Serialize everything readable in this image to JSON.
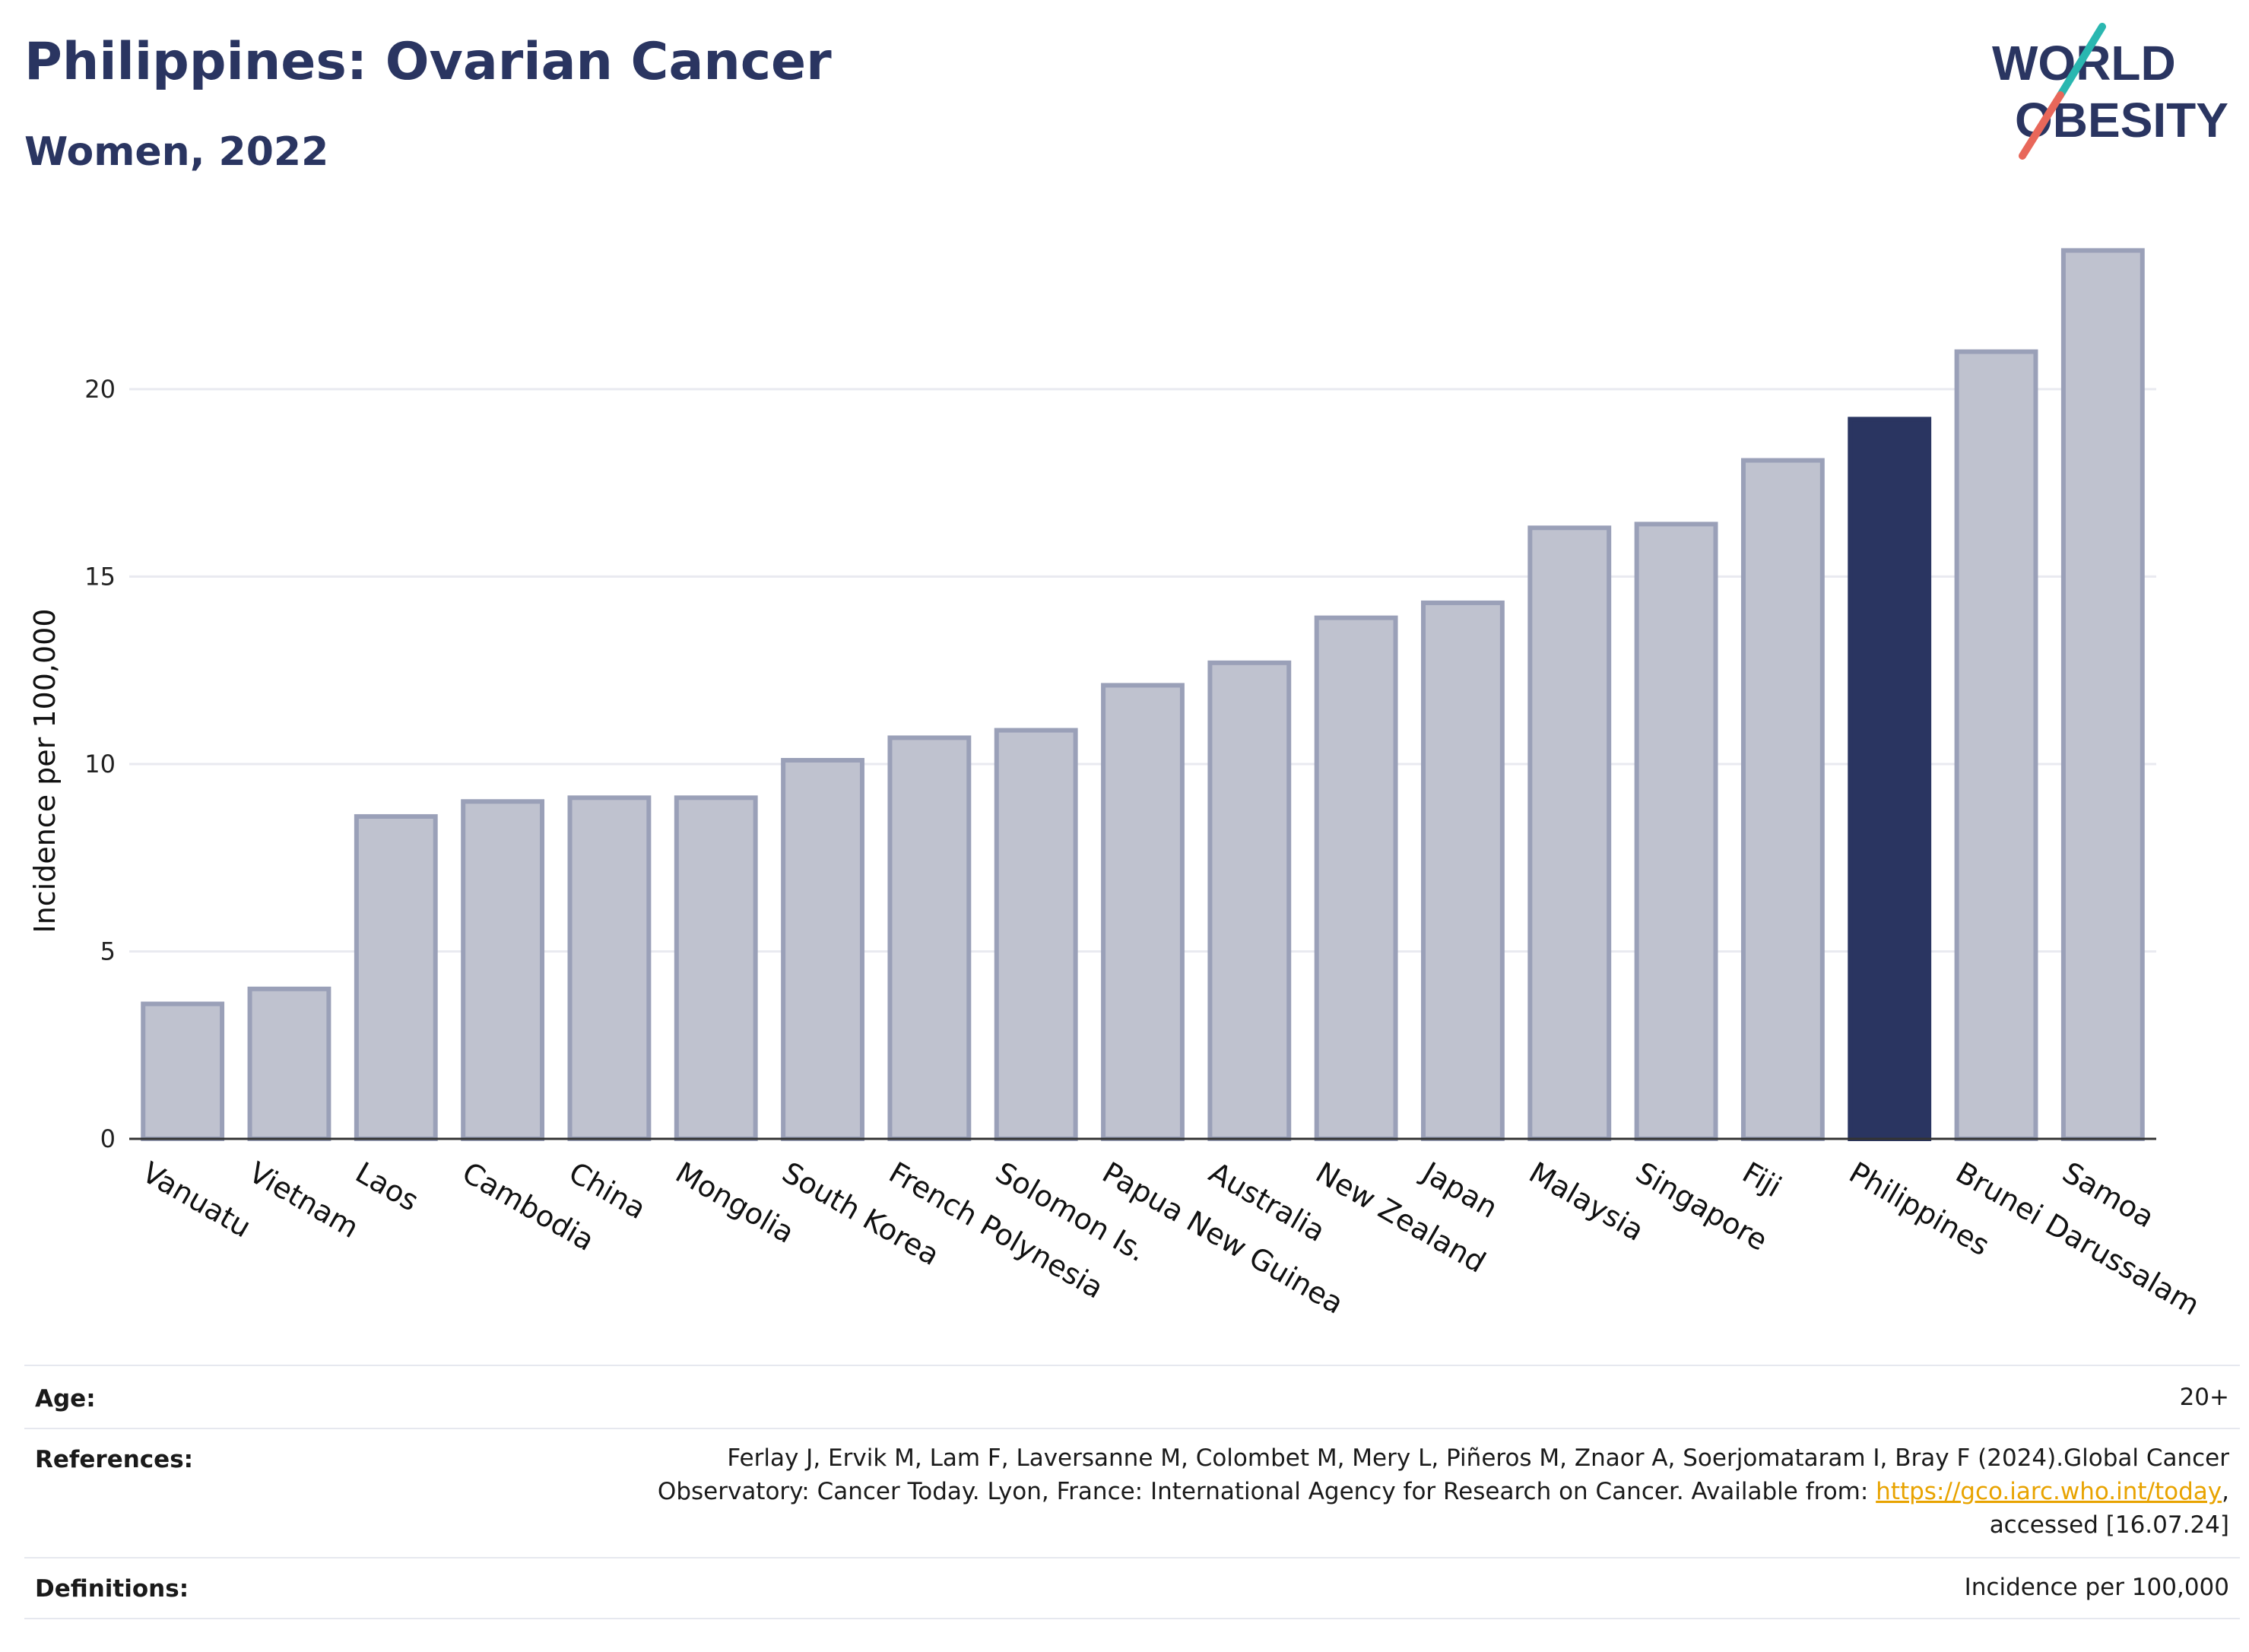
{
  "header": {
    "title": "Philippines: Ovarian Cancer",
    "subtitle": "Women, 2022"
  },
  "logo": {
    "line1": "WORLD",
    "line2": "OBESITY",
    "colors": {
      "text": "#2a3561",
      "slash_top": "#2ab7b0",
      "slash_bottom": "#e8675a"
    }
  },
  "chart_data": {
    "type": "bar",
    "title": "",
    "xlabel": "",
    "ylabel": "Incidence per 100,000",
    "ylim": [
      0,
      24.5
    ],
    "yticks": [
      0,
      5,
      10,
      15,
      20
    ],
    "grid": true,
    "highlight": "Philippines",
    "colors": {
      "bar": "#bfc2cf",
      "bar_border": "#9aa0b8",
      "highlight": "#2a3561",
      "grid": "#e9eaf0",
      "axis": "#333333"
    },
    "categories": [
      "Vanuatu",
      "Vietnam",
      "Laos",
      "Cambodia",
      "China",
      "Mongolia",
      "South Korea",
      "French Polynesia",
      "Solomon Is.",
      "Papua New Guinea",
      "Australia",
      "New Zealand",
      "Japan",
      "Malaysia",
      "Singapore",
      "Fiji",
      "Philippines",
      "Brunei Darussalam",
      "Samoa"
    ],
    "values": [
      3.6,
      4.0,
      8.6,
      9.0,
      9.1,
      9.1,
      10.1,
      10.7,
      10.9,
      12.1,
      12.7,
      13.9,
      14.3,
      16.3,
      16.4,
      18.1,
      19.2,
      21.0,
      23.7
    ]
  },
  "info": {
    "age_label": "Age:",
    "age_value": "20+",
    "references_label": "References:",
    "references_line1": "Ferlay J, Ervik M, Lam F, Laversanne M, Colombet M, Mery L, Piñeros M, Znaor A, Soerjomataram I, Bray F (2024).Global Cancer",
    "references_line2_pre": "Observatory: Cancer Today. Lyon, France: International Agency for Research on Cancer. Available from: ",
    "references_link": "https://gco.iarc.who.int/today",
    "references_line2_post": ",",
    "references_line3": "accessed [16.07.24]",
    "definitions_label": "Definitions:",
    "definitions_value": "Incidence per 100,000"
  }
}
